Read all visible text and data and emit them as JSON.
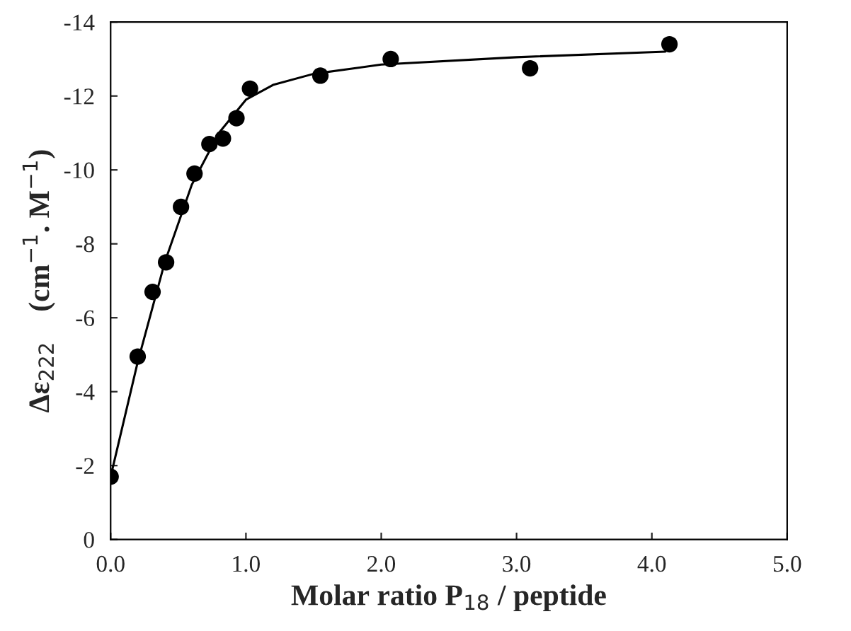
{
  "chart_data": {
    "type": "scatter",
    "xlabel": "Molar ratio P$_{18}$ / peptide",
    "ylabel": "Δε$_{222}$    (cm$^{−1}$. M$^{−1}$)",
    "xlim": [
      0,
      5
    ],
    "ylim": [
      0,
      -14
    ],
    "xticks": [
      {
        "value": 0,
        "label": "0.0"
      },
      {
        "value": 1,
        "label": "1.0"
      },
      {
        "value": 2,
        "label": "2.0"
      },
      {
        "value": 3,
        "label": "3.0"
      },
      {
        "value": 4,
        "label": "4.0"
      },
      {
        "value": 5,
        "label": "5.0"
      }
    ],
    "yticks": [
      0,
      -2,
      -4,
      -6,
      -8,
      -10,
      -12,
      -14
    ],
    "grid": false,
    "legend": false,
    "series": [
      {
        "color": "#000000",
        "marker": "circle",
        "x": [
          0,
          0.2,
          0.31,
          0.41,
          0.52,
          0.62,
          0.73,
          0.83,
          0.93,
          1.03,
          1.55,
          2.07,
          3.1,
          4.13
        ],
        "values": [
          -1.7,
          -4.95,
          -6.7,
          -7.5,
          -9.0,
          -9.9,
          -10.7,
          -10.85,
          -11.4,
          -12.2,
          -12.55,
          -13.0,
          -12.75,
          -13.4
        ]
      },
      {
        "type": "line",
        "color": "#000000",
        "marker": "none",
        "line_style": "solid",
        "x": [
          0,
          0.2,
          0.4,
          0.6,
          0.8,
          1.0,
          1.2,
          1.5,
          2.0,
          3.0,
          4.1
        ],
        "values": [
          -1.7,
          -4.8,
          -7.5,
          -9.6,
          -11.0,
          -11.9,
          -12.3,
          -12.6,
          -12.85,
          -13.05,
          -13.2
        ]
      }
    ]
  }
}
